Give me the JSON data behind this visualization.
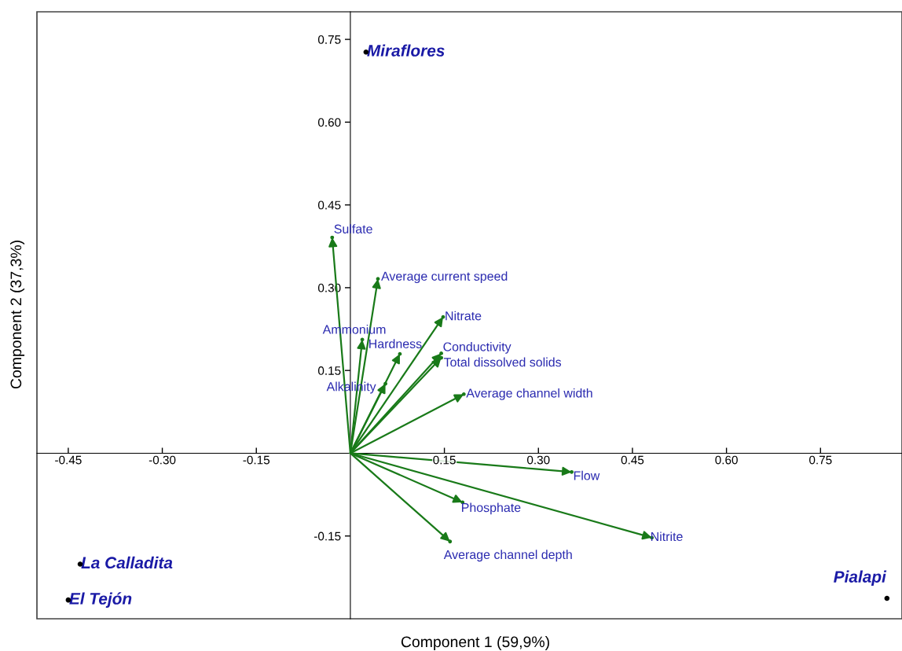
{
  "chart_data": {
    "type": "scatter",
    "xlabel": "Component 1 (59,9%)",
    "ylabel": "Component 2 (37,3%)",
    "xlim": [
      -0.5,
      0.88
    ],
    "ylim": [
      -0.3,
      0.8
    ],
    "xticks": [
      -0.45,
      {
        "value": -0.3,
        "label": "-0.30"
      },
      -0.15,
      0.15,
      {
        "value": 0.3,
        "label": "0.30"
      },
      0.45,
      {
        "value": 0.6,
        "label": "0.60"
      },
      0.75
    ],
    "yticks": [
      -0.15,
      0.15,
      {
        "value": 0.3,
        "label": "0.30"
      },
      0.45,
      {
        "value": 0.6,
        "label": "0.60"
      },
      0.75
    ],
    "marker": "circle",
    "grid": false,
    "legend": false,
    "series": [
      {
        "name": "Miraflores",
        "color": "#000000",
        "x": [
          0.025
        ],
        "values": [
          0.727
        ]
      },
      {
        "name": "La Calladita",
        "color": "#000000",
        "x": [
          -0.431
        ],
        "values": [
          -0.201
        ]
      },
      {
        "name": "El Tejón",
        "color": "#000000",
        "x": [
          -0.45
        ],
        "values": [
          -0.266
        ]
      },
      {
        "name": "Pialapi",
        "color": "#000000",
        "x": [
          0.856
        ],
        "values": [
          -0.263
        ]
      },
      {
        "color": "#197a19",
        "x": [
          -0.029,
          0.044,
          0.148,
          0.019,
          0.079,
          0.145,
          0.145,
          0.056,
          0.181,
          0.353,
          0.179,
          0.481,
          0.159
        ],
        "values": [
          0.391,
          0.316,
          0.247,
          0.206,
          0.18,
          0.181,
          0.173,
          0.126,
          0.107,
          -0.034,
          -0.089,
          -0.153,
          -0.16
        ]
      }
    ],
    "annotations": [
      {
        "text": "Sulfate",
        "x": -0.029,
        "y": 0.391
      },
      {
        "text": "Average current speed",
        "x": 0.044,
        "y": 0.316
      },
      {
        "text": "Nitrate",
        "x": 0.148,
        "y": 0.247
      },
      {
        "text": "Ammonium",
        "x": 0.019,
        "y": 0.206
      },
      {
        "text": "Hardness",
        "x": 0.079,
        "y": 0.18
      },
      {
        "text": "Conductivity",
        "x": 0.145,
        "y": 0.181
      },
      {
        "text": "Total dissolved solids",
        "x": 0.145,
        "y": 0.173
      },
      {
        "text": "Alkalinity",
        "x": 0.056,
        "y": 0.126
      },
      {
        "text": "Average channel width",
        "x": 0.181,
        "y": 0.107
      },
      {
        "text": "Flow",
        "x": 0.353,
        "y": -0.034
      },
      {
        "text": "Phosphate",
        "x": 0.179,
        "y": -0.089
      },
      {
        "text": "Nitrite",
        "x": 0.481,
        "y": -0.153
      },
      {
        "text": "Average channel depth",
        "x": 0.159,
        "y": -0.16
      }
    ]
  }
}
